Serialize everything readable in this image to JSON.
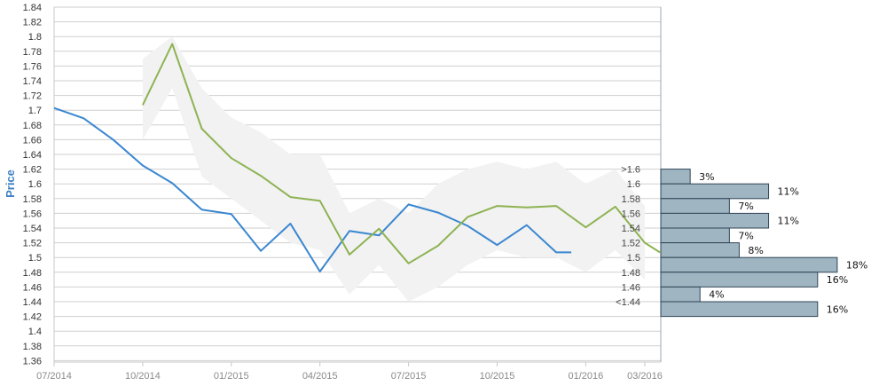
{
  "chart_data": {
    "type": "line",
    "ylabel": "Price",
    "xlabel": "",
    "ylim": [
      1.36,
      1.84
    ],
    "yticks": [
      "1.84",
      "1.82",
      "1.8",
      "1.78",
      "1.76",
      "1.74",
      "1.72",
      "1.7",
      "1.68",
      "1.66",
      "1.64",
      "1.62",
      "1.6",
      "1.58",
      "1.56",
      "1.54",
      "1.52",
      "1.5",
      "1.48",
      "1.46",
      "1.44",
      "1.42",
      "1.4",
      "1.38",
      "1.36"
    ],
    "xticks": [
      "07/2014",
      "10/2014",
      "01/2015",
      "04/2015",
      "07/2015",
      "10/2015",
      "01/2016",
      "03/2016"
    ],
    "grid": true,
    "series": [
      {
        "color": "#3a87d0",
        "x": [
          "07/2014",
          "08/2014",
          "09/2014",
          "10/2014",
          "11/2014",
          "12/2014",
          "01/2015",
          "02/2015",
          "03/2015",
          "04/2015",
          "05/2015",
          "06/2015",
          "07/2015",
          "08/2015",
          "09/2015",
          "10/2015",
          "11/2015",
          "12/2015",
          "12/2015"
        ],
        "values": [
          1.703,
          1.689,
          1.66,
          1.625,
          1.601,
          1.565,
          1.559,
          1.509,
          1.546,
          1.481,
          1.536,
          1.53,
          1.572,
          1.561,
          1.543,
          1.517,
          1.544,
          1.507,
          1.507
        ]
      },
      {
        "color": "#8db352",
        "x": [
          "10/2014",
          "11/2014",
          "12/2014",
          "01/2015",
          "02/2015",
          "03/2015",
          "04/2015",
          "05/2015",
          "06/2015",
          "07/2015",
          "08/2015",
          "09/2015",
          "10/2015",
          "11/2015",
          "12/2015",
          "01/2016",
          "02/2016",
          "03/2016",
          "03/2016"
        ],
        "values": [
          1.707,
          1.79,
          1.675,
          1.635,
          1.611,
          1.582,
          1.577,
          1.504,
          1.539,
          1.492,
          1.516,
          1.555,
          1.57,
          1.568,
          1.57,
          1.541,
          1.569,
          1.52,
          1.507
        ]
      }
    ],
    "band": {
      "color": "#f2f2f2",
      "x": [
        "10/2014",
        "11/2014",
        "12/2014",
        "01/2015",
        "02/2015",
        "03/2015",
        "04/2015",
        "05/2015",
        "06/2015",
        "07/2015",
        "08/2015",
        "09/2015",
        "10/2015",
        "11/2015",
        "12/2015",
        "01/2016",
        "02/2016",
        "03/2016"
      ],
      "upper": [
        1.77,
        1.8,
        1.73,
        1.69,
        1.67,
        1.64,
        1.64,
        1.56,
        1.58,
        1.56,
        1.6,
        1.62,
        1.63,
        1.62,
        1.63,
        1.6,
        1.62,
        1.57
      ],
      "lower": [
        1.66,
        1.73,
        1.61,
        1.58,
        1.55,
        1.52,
        1.51,
        1.45,
        1.49,
        1.44,
        1.46,
        1.49,
        1.51,
        1.5,
        1.5,
        1.48,
        1.51,
        1.47
      ]
    },
    "distribution": {
      "type": "bar",
      "orientation": "horizontal",
      "color": "#9fb5c2",
      "buckets": [
        {
          "label": ">1.6",
          "percent": 3,
          "text": "3%"
        },
        {
          "label": "1.6",
          "percent": 11,
          "text": "11%"
        },
        {
          "label": "1.58",
          "percent": 7,
          "text": "7%"
        },
        {
          "label": "1.56",
          "percent": 11,
          "text": "11%"
        },
        {
          "label": "1.54",
          "percent": 7,
          "text": "7%"
        },
        {
          "label": "1.52",
          "percent": 8,
          "text": "8%"
        },
        {
          "label": "1.5",
          "percent": 18,
          "text": "18%"
        },
        {
          "label": "1.48",
          "percent": 16,
          "text": "16%"
        },
        {
          "label": "1.46",
          "percent": 4,
          "text": "4%"
        },
        {
          "label": "<1.44",
          "percent": 16,
          "text": "16%"
        }
      ],
      "bucket_top_values": [
        1.62,
        1.6,
        1.58,
        1.56,
        1.54,
        1.52,
        1.5,
        1.48,
        1.46,
        1.44
      ],
      "bucket_values": [
        1.62,
        1.6,
        1.58,
        1.56,
        1.54,
        1.52,
        1.5,
        1.48,
        1.46,
        1.44
      ],
      "label_values": [
        1.6,
        1.6,
        1.58,
        1.56,
        1.54,
        1.52,
        1.5,
        1.48,
        1.46,
        1.44
      ]
    }
  }
}
